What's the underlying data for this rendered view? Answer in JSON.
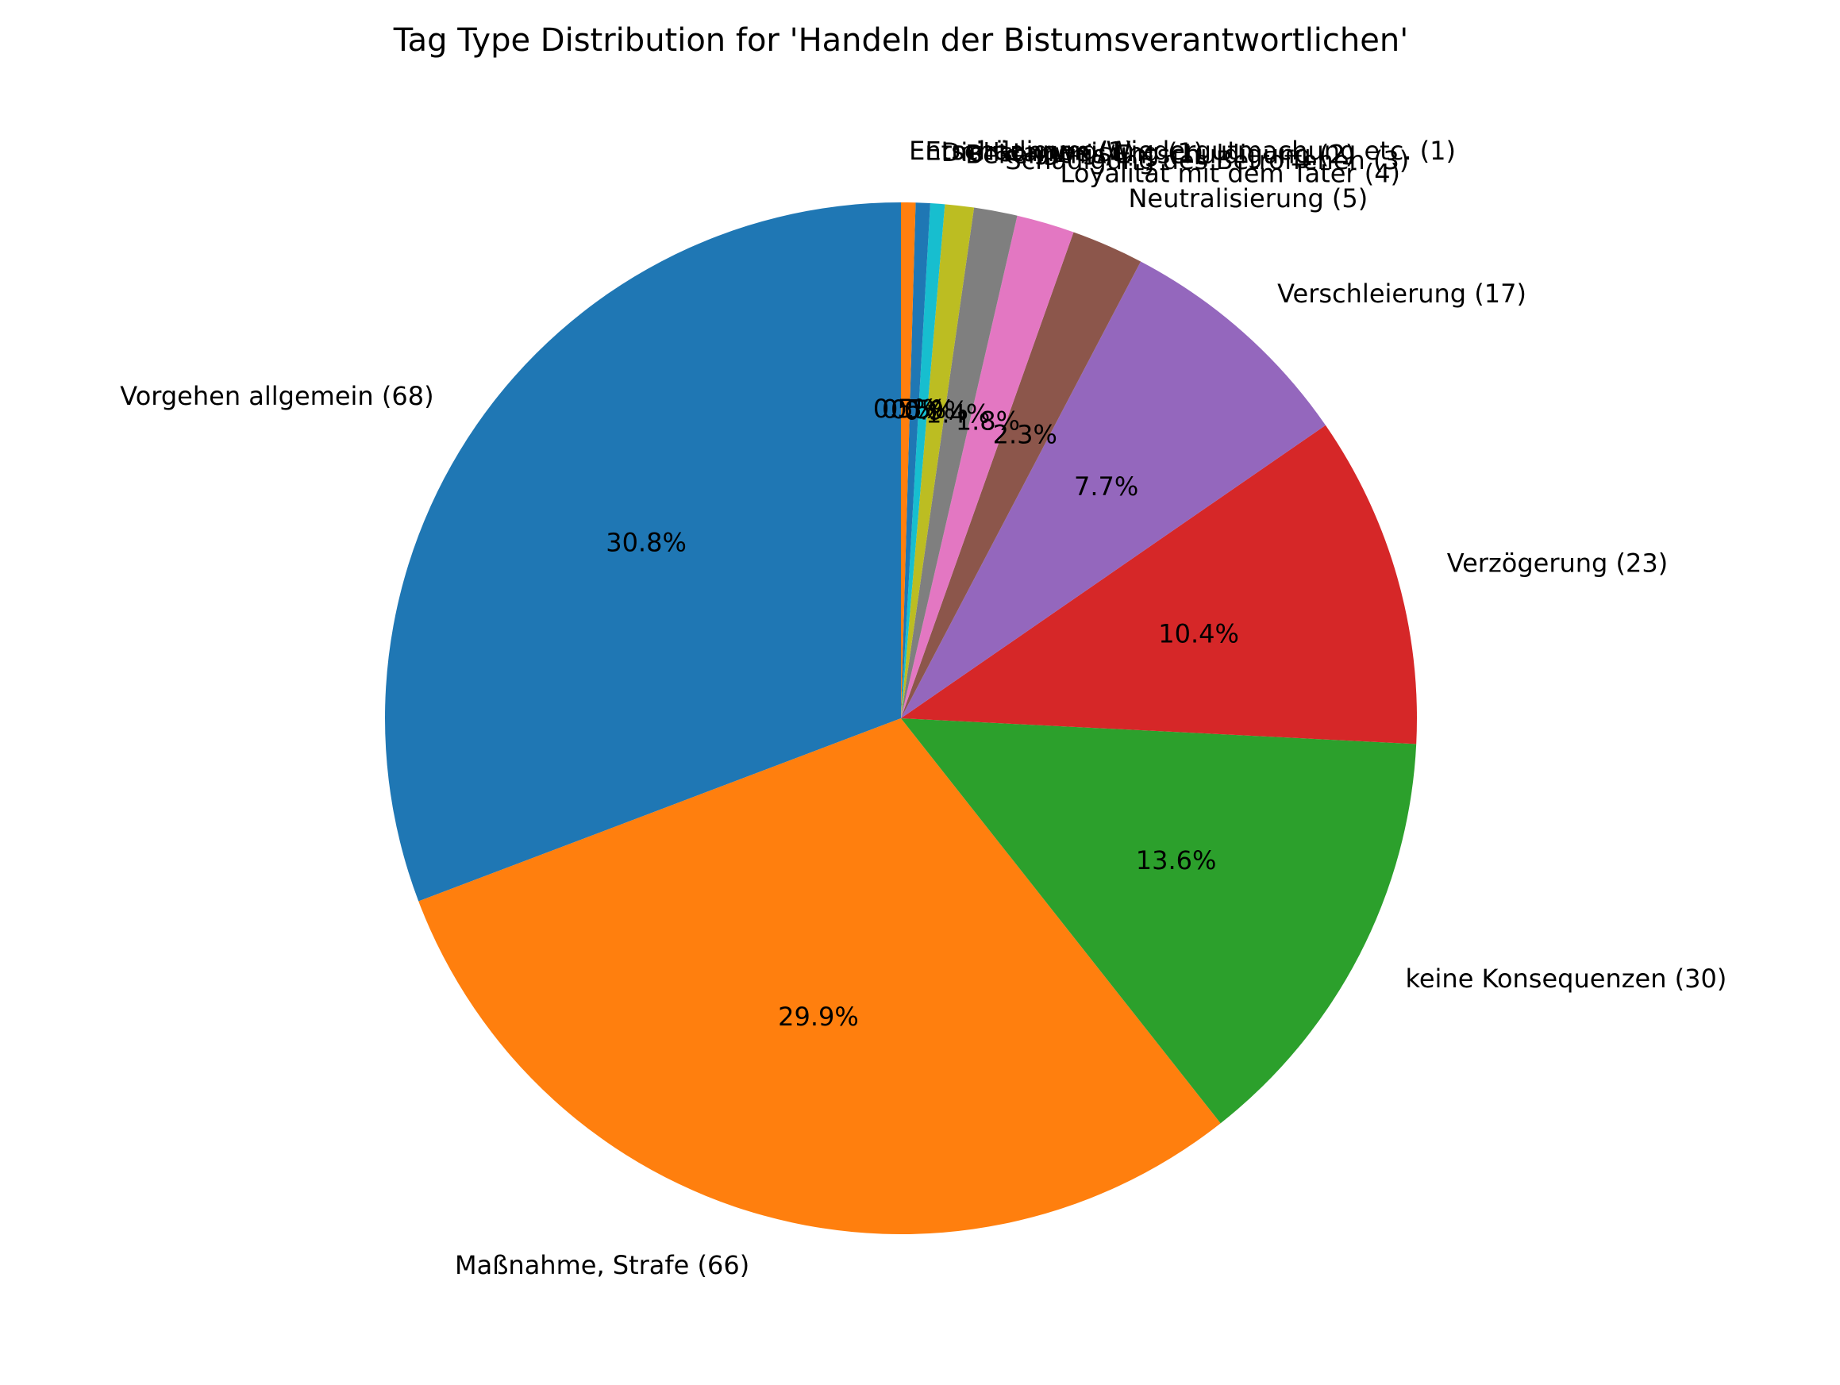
{
  "chart_data": {
    "type": "pie",
    "title": "Tag Type Distribution for 'Handeln der Bistumsverantwortlichen'",
    "start_angle_deg": 90,
    "direction": "counterclockwise",
    "slices": [
      {
        "label": "Vorgehen allgemein (68)",
        "value": 68,
        "percent_label": "30.8%",
        "color": "#1f77b4"
      },
      {
        "label": "Maßnahme, Strafe (66)",
        "value": 66,
        "percent_label": "29.9%",
        "color": "#ff7f0e"
      },
      {
        "label": "keine Konsequenzen (30)",
        "value": 30,
        "percent_label": "13.6%",
        "color": "#2ca02c"
      },
      {
        "label": "Verzögerung (23)",
        "value": 23,
        "percent_label": "10.4%",
        "color": "#d62728"
      },
      {
        "label": "Verschleierung (17)",
        "value": 17,
        "percent_label": "7.7%",
        "color": "#9467bd"
      },
      {
        "label": "Neutralisierung (5)",
        "value": 5,
        "percent_label": "2.3%",
        "color": "#8c564b"
      },
      {
        "label": "Loyalität mit dem Täter (4)",
        "value": 4,
        "percent_label": "1.8%",
        "color": "#e377c2"
      },
      {
        "label": "Schädigung des Betroffenen (3)",
        "value": 3,
        "percent_label": "1.4%",
        "color": "#7f7f7f"
      },
      {
        "label": "Bekenntnis/Entschuldigung (2)",
        "value": 2,
        "percent_label": "0.9%",
        "color": "#bcbd22"
      },
      {
        "label": "Dienstanweisung (1)",
        "value": 1,
        "percent_label": "0.5%",
        "color": "#17becf"
      },
      {
        "label": "Ermittlungen (1)",
        "value": 1,
        "percent_label": "0.5%",
        "color": "#1f77b4"
      },
      {
        "label": "Entschädigung/Wiedergutmachung etc. (1)",
        "value": 1,
        "percent_label": "0.5%",
        "color": "#ff7f0e"
      }
    ]
  }
}
